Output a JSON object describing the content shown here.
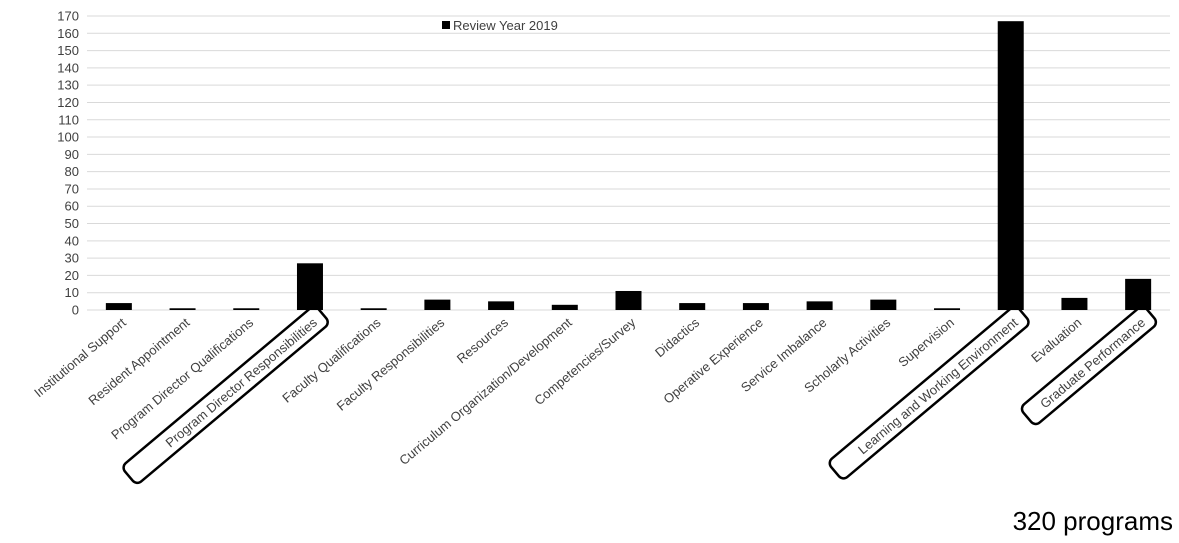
{
  "chart_data": {
    "type": "bar",
    "title": "",
    "xlabel": "",
    "ylabel": "",
    "ylim": [
      0,
      170
    ],
    "ytick_step": 10,
    "grid": true,
    "legend_position": "top-center",
    "bar_color": "#000000",
    "highlight_border_color": "#000000",
    "categories": [
      "Institutional Support",
      "Resident Appointment",
      "Program Director Qualifications",
      "Program Director Responsibilities",
      "Faculty Qualifications",
      "Faculty Responsibilities",
      "Resources",
      "Curriculum Organization/Development",
      "Competencies/Survey",
      "Didactics",
      "Operative Experience",
      "Service Imbalance",
      "Scholarly Activities",
      "Supervision",
      "Learning and Working Environment",
      "Evaluation",
      "Graduate Performance"
    ],
    "series": [
      {
        "name": "Review Year 2019",
        "values": [
          4,
          1,
          1,
          27,
          1,
          6,
          5,
          3,
          11,
          4,
          4,
          5,
          6,
          1,
          167,
          7,
          18
        ]
      }
    ],
    "highlighted_categories": [
      "Program Director Responsibilities",
      "Learning and Working Environment",
      "Graduate Performance"
    ]
  },
  "annotation": "320 programs"
}
